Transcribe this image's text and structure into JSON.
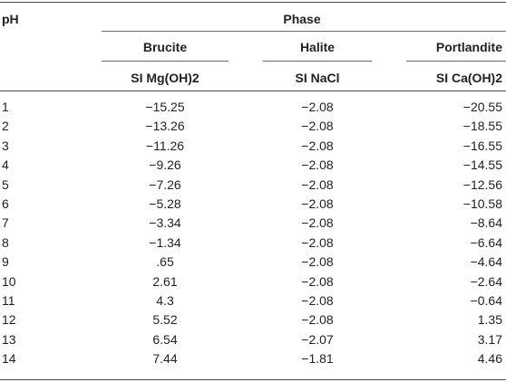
{
  "table": {
    "header": {
      "ph": "pH",
      "phase": "Phase",
      "phases": [
        "Brucite",
        "Halite",
        "Portlandite"
      ],
      "si": [
        "SI Mg(OH)2",
        "SI NaCl",
        "SI Ca(OH)2"
      ]
    },
    "rows": [
      {
        "ph": "1",
        "mg": "−15.25",
        "na": "−2.08",
        "ca": "−20.55"
      },
      {
        "ph": "2",
        "mg": "−13.26",
        "na": "−2.08",
        "ca": "−18.55"
      },
      {
        "ph": "3",
        "mg": "−11.26",
        "na": "−2.08",
        "ca": "−16.55"
      },
      {
        "ph": "4",
        "mg": "−9.26",
        "na": "−2.08",
        "ca": "−14.55"
      },
      {
        "ph": "5",
        "mg": "−7.26",
        "na": "−2.08",
        "ca": "−12.56"
      },
      {
        "ph": "6",
        "mg": "−5.28",
        "na": "−2.08",
        "ca": "−10.58"
      },
      {
        "ph": "7",
        "mg": "−3.34",
        "na": "−2.08",
        "ca": "−8.64"
      },
      {
        "ph": "8",
        "mg": "−1.34",
        "na": "−2.08",
        "ca": "−6.64"
      },
      {
        "ph": "9",
        "mg": ".65",
        "na": "−2.08",
        "ca": "−4.64"
      },
      {
        "ph": "10",
        "mg": "2.61",
        "na": "−2.08",
        "ca": "−2.64"
      },
      {
        "ph": "11",
        "mg": "4.3",
        "na": "−2.08",
        "ca": "−0.64"
      },
      {
        "ph": "12",
        "mg": "5.52",
        "na": "−2.08",
        "ca": "1.35"
      },
      {
        "ph": "13",
        "mg": "6.54",
        "na": "−2.07",
        "ca": "3.17"
      },
      {
        "ph": "14",
        "mg": "7.44",
        "na": "−1.81",
        "ca": "4.46"
      }
    ]
  }
}
